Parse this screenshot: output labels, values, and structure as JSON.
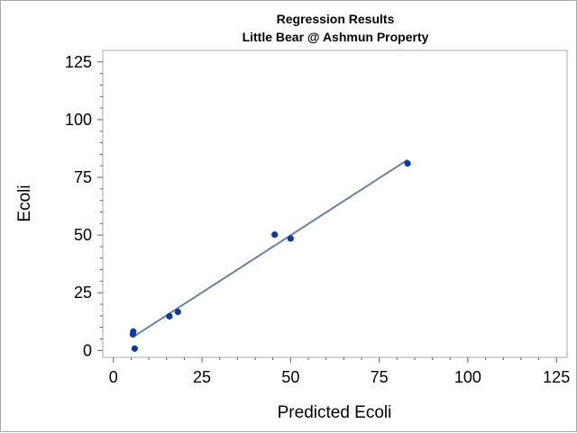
{
  "chart_data": {
    "type": "scatter",
    "title": "Regression Results",
    "subtitle": "Little Bear @ Ashmun Property",
    "xlabel": "Predicted Ecoli",
    "ylabel": "Ecoli",
    "xlim": [
      -3,
      128
    ],
    "ylim": [
      -3,
      130
    ],
    "xticks": [
      0,
      25,
      50,
      75,
      100,
      125
    ],
    "yticks": [
      0,
      25,
      50,
      75,
      100,
      125
    ],
    "grid": false,
    "points": [
      {
        "x": 5.5,
        "y": 7
      },
      {
        "x": 5.6,
        "y": 8.2
      },
      {
        "x": 6.0,
        "y": 0.8
      },
      {
        "x": 15.8,
        "y": 14.8
      },
      {
        "x": 18.2,
        "y": 16.7
      },
      {
        "x": 45.5,
        "y": 50.2
      },
      {
        "x": 50.0,
        "y": 48.5
      },
      {
        "x": 83.0,
        "y": 81.0
      }
    ],
    "fit_line": {
      "x": [
        5.5,
        83.0
      ],
      "y": [
        5.8,
        82.6
      ]
    },
    "colors": {
      "points": "#0b3e9c",
      "fit_line": "#6a819f",
      "axis": "#5f5f5f",
      "frame": "#a9a9a9"
    }
  }
}
